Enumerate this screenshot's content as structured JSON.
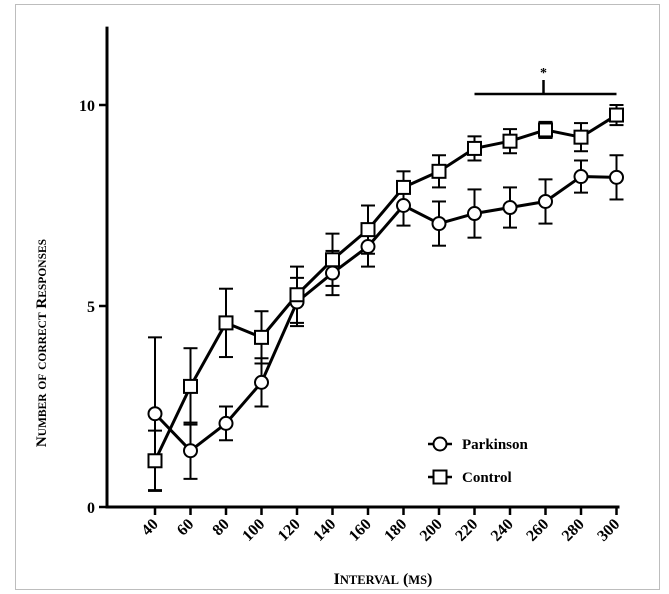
{
  "chart_data": {
    "type": "line",
    "xlabel": "Interval (ms)",
    "ylabel": "Number of correct Responses",
    "categories": [
      "40",
      "60",
      "80",
      "100",
      "120",
      "140",
      "160",
      "180",
      "200",
      "220",
      "240",
      "260",
      "280",
      "300"
    ],
    "ylim": [
      0,
      12
    ],
    "yticks": [
      0,
      5,
      10
    ],
    "grid": false,
    "legend_position": "bottom-right",
    "significance_marker": "*",
    "significance_range": [
      "220",
      "300"
    ],
    "series": [
      {
        "name": "Parkinson",
        "marker": "circle",
        "values": [
          2.32,
          1.4,
          2.08,
          3.1,
          5.1,
          5.82,
          6.48,
          7.5,
          7.05,
          7.3,
          7.45,
          7.6,
          8.22,
          8.2
        ],
        "errors": [
          1.9,
          0.7,
          0.42,
          0.6,
          0.6,
          0.55,
          0.5,
          0.5,
          0.55,
          0.6,
          0.5,
          0.55,
          0.4,
          0.55
        ]
      },
      {
        "name": "Control",
        "marker": "square",
        "values": [
          1.15,
          3.0,
          4.58,
          4.22,
          5.28,
          6.15,
          6.9,
          7.95,
          8.35,
          8.92,
          9.1,
          9.38,
          9.2,
          9.75
        ],
        "errors": [
          0.75,
          0.95,
          0.85,
          0.65,
          0.7,
          0.65,
          0.6,
          0.4,
          0.4,
          0.3,
          0.3,
          0.2,
          0.35,
          0.25
        ]
      }
    ]
  }
}
